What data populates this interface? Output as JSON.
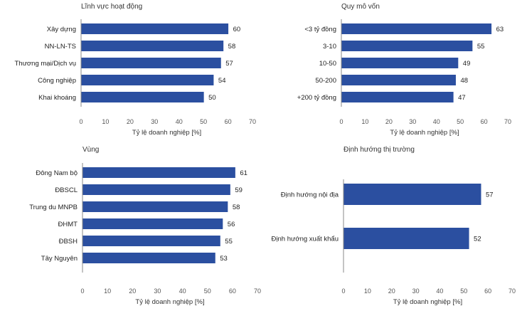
{
  "colors": {
    "bar": "#2B4FA0",
    "axis": "#888888"
  },
  "chart_data": [
    {
      "type": "bar",
      "orientation": "horizontal",
      "title": "Lĩnh vực hoạt động",
      "categories": [
        "Xây dựng",
        "NN-LN-TS",
        "Thương mại/Dịch vụ",
        "Công nghiệp",
        "Khai khoáng"
      ],
      "values": [
        60,
        58,
        57,
        54,
        50
      ],
      "xlabel": "Tỷ lệ doanh nghiệp [%]",
      "xlim": [
        0,
        70
      ],
      "xticks": [
        0,
        10,
        20,
        30,
        40,
        50,
        60,
        70
      ]
    },
    {
      "type": "bar",
      "orientation": "horizontal",
      "title": "Quy mô vốn",
      "categories": [
        "<3 tỷ đồng",
        "3-10",
        "10-50",
        "50-200",
        "+200 tỷ đồng"
      ],
      "values": [
        63,
        55,
        49,
        48,
        47
      ],
      "xlabel": "Tỷ lệ doanh nghiệp [%]",
      "xlim": [
        0,
        70
      ],
      "xticks": [
        0,
        10,
        20,
        30,
        40,
        50,
        60,
        70
      ]
    },
    {
      "type": "bar",
      "orientation": "horizontal",
      "title": "Vùng",
      "categories": [
        "Đông Nam bộ",
        "ĐBSCL",
        "Trung du MNPB",
        "ĐHMT",
        "ĐBSH",
        "Tây Nguyên"
      ],
      "values": [
        61,
        59,
        58,
        56,
        55,
        53
      ],
      "xlabel": "Tỷ lệ doanh nghiệp [%]",
      "xlim": [
        0,
        70
      ],
      "xticks": [
        0,
        10,
        20,
        30,
        40,
        50,
        60,
        70
      ]
    },
    {
      "type": "bar",
      "orientation": "horizontal",
      "title": "Định hướng thị trường",
      "categories": [
        "Định hướng nội địa",
        "Định hướng xuất khẩu"
      ],
      "values": [
        57,
        52
      ],
      "xlabel": "Tỷ lệ doanh nghiệp [%]",
      "xlim": [
        0,
        70
      ],
      "xticks": [
        0,
        10,
        20,
        30,
        40,
        50,
        60,
        70
      ]
    }
  ]
}
